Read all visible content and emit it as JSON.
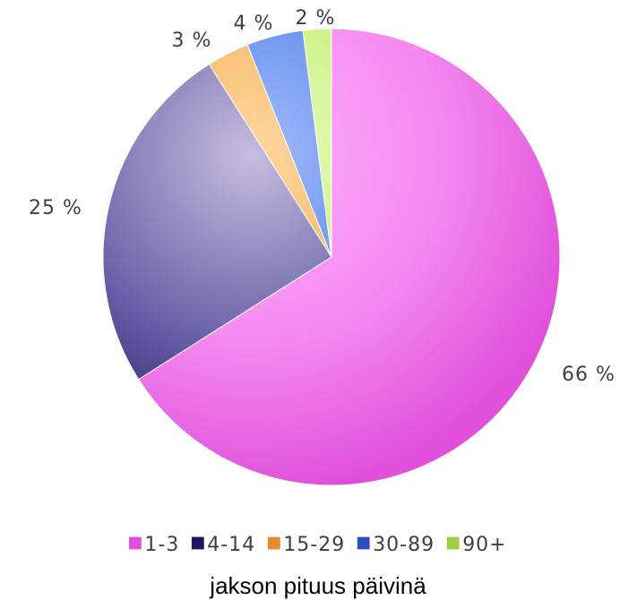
{
  "chart_data": {
    "type": "pie",
    "categories": [
      "1-3",
      "4-14",
      "15-29",
      "30-89",
      "90+"
    ],
    "values": [
      66,
      25,
      3,
      4,
      2
    ],
    "data_labels": [
      "66 %",
      "25 %",
      "3 %",
      "4 %",
      "2 %"
    ],
    "legend": {
      "placement": "bottom",
      "title": "jakson pituus päivinä"
    },
    "colors": [
      "#f48af0",
      "#6a62a8",
      "#f6b25c",
      "#5a86ec",
      "#c8ee78"
    ],
    "colors_light": [
      "#ffb0ff",
      "#c6bedf",
      "#fdd7a0",
      "#a4bdfa",
      "#e8ffc2"
    ],
    "colors_dark": [
      "#e050da",
      "#1d1660",
      "#e38e2c",
      "#2d4fbf",
      "#9ccf44"
    ]
  }
}
